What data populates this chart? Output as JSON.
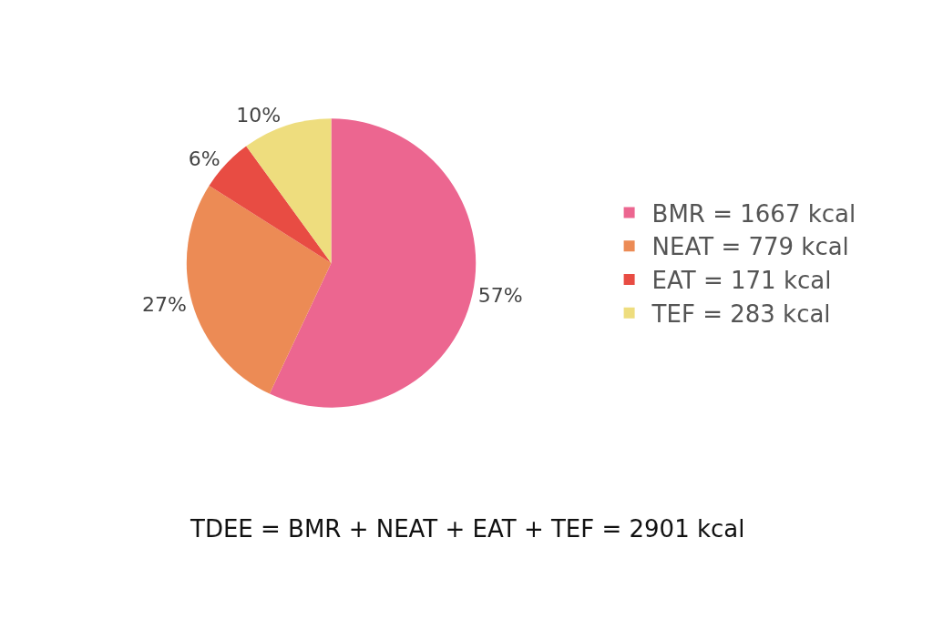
{
  "chart_data": {
    "type": "pie",
    "categories": [
      "BMR = 1667 kcal",
      "NEAT = 779 kcal",
      "EAT = 171 kcal",
      "TEF = 283 kcal"
    ],
    "values": [
      57,
      27,
      6,
      10
    ],
    "colors": [
      "#ec6690",
      "#ec8b55",
      "#e84c43",
      "#eedd7e"
    ],
    "value_labels": [
      "57%",
      "27%",
      "6%",
      "10%"
    ],
    "legend": "right",
    "annotations": [
      "TDEE = BMR + NEAT + EAT + TEF = 2901 kcal"
    ]
  }
}
